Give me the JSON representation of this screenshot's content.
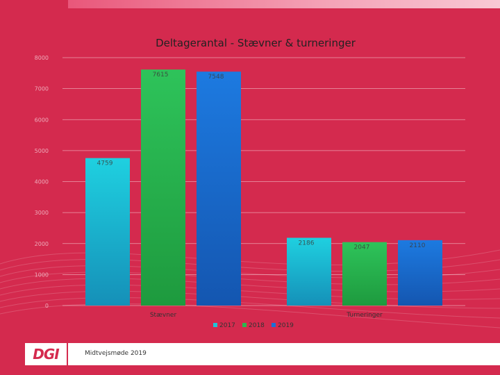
{
  "chart_data": {
    "type": "bar",
    "title": "Deltagerantal - Stævner & turneringer",
    "categories": [
      "Stævner",
      "Turneringer"
    ],
    "series": [
      {
        "name": "2017",
        "values": [
          4759,
          2186
        ],
        "color": "#1fc4d8"
      },
      {
        "name": "2018",
        "values": [
          7615,
          2047
        ],
        "color": "#2ab84e"
      },
      {
        "name": "2019",
        "values": [
          7548,
          2110
        ],
        "color": "#1b6fd6"
      }
    ],
    "ylim": [
      0,
      8000
    ],
    "yticks": [
      "0",
      "1000",
      "2000",
      "3000",
      "4000",
      "5000",
      "6000",
      "7000",
      "8000"
    ],
    "data_labels": [
      [
        "4759",
        "2186"
      ],
      [
        "7615",
        "2047"
      ],
      [
        "7548",
        "2110"
      ]
    ],
    "grid": true,
    "legend": "bottom"
  },
  "footer": {
    "logo_text": "DGI",
    "caption": "Midtvejsmøde 2019"
  }
}
